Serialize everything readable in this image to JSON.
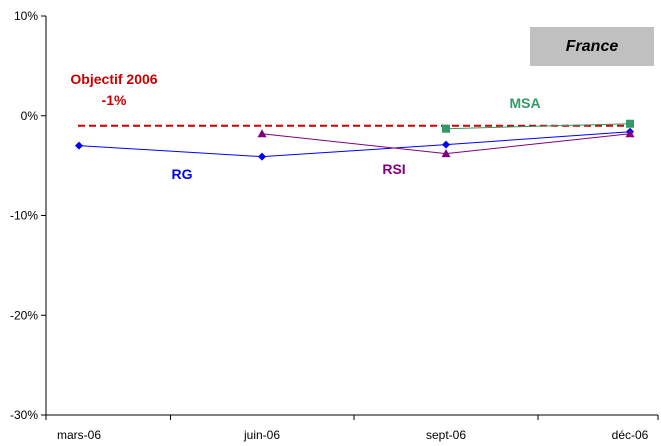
{
  "chart_data": {
    "type": "line",
    "categories": [
      "mars-06",
      "juin-06",
      "sept-06",
      "déc-06"
    ],
    "ylim": [
      -30,
      10
    ],
    "yticks": [
      "10%",
      "0%",
      "-10%",
      "-20%",
      "-30%"
    ],
    "ytick_values": [
      10,
      0,
      -10,
      -20,
      -30
    ],
    "box_label": "France",
    "series": [
      {
        "name": "RG",
        "color": "#0000ff",
        "marker": "diamond",
        "values": [
          -3.0,
          -4.1,
          -2.9,
          -1.6
        ]
      },
      {
        "name": "RSI",
        "color": "#800080",
        "marker": "triangle",
        "values": [
          null,
          -1.8,
          -3.8,
          -1.8
        ]
      },
      {
        "name": "MSA",
        "color": "#339966",
        "marker": "square",
        "values": [
          null,
          null,
          -1.3,
          -0.8
        ]
      }
    ],
    "target": {
      "line1": "Objectif 2006",
      "line2": "-1%",
      "value": -1,
      "color": "#cc0000"
    }
  }
}
